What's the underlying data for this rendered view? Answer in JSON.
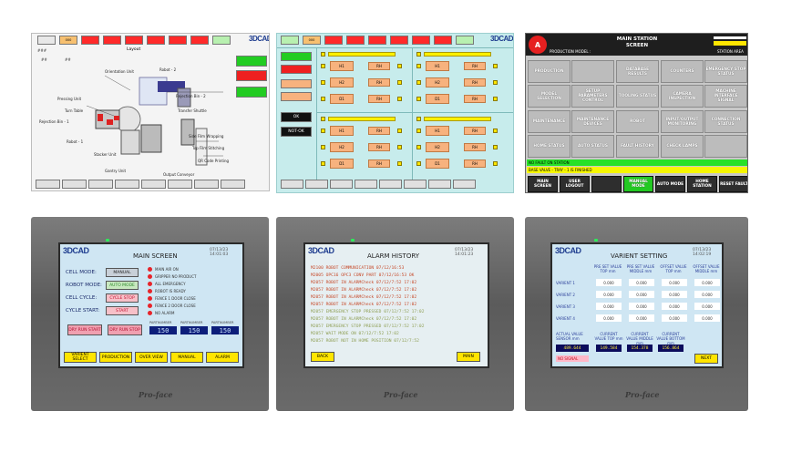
{
  "panel1": {
    "logo": "3DCAD",
    "title": "Layout",
    "top_buttons": [
      {
        "label": "",
        "color": "#e8e8e8"
      },
      {
        "label": "000",
        "color": "#f7c070"
      },
      {
        "label": "",
        "color": "#ff2a2a"
      },
      {
        "label": "",
        "color": "#ff2a2a"
      },
      {
        "label": "",
        "color": "#ff2a2a"
      },
      {
        "label": "",
        "color": "#ff2a2a"
      },
      {
        "label": "",
        "color": "#ff2a2a"
      },
      {
        "label": "",
        "color": "#ff2a2a"
      },
      {
        "label": "",
        "color": "#b8f0b0"
      }
    ],
    "labels": {
      "orientation": "Orientation Unit",
      "robot2": "Robot - 2",
      "pressing": "Pressing Unit",
      "rejection2": "Rejection Bin - 2",
      "turn_table": "Turn Table",
      "transfer": "Transfer Shuttle",
      "rejection1": "Rejection Bin - 1",
      "side_film": "Side Film Wrapping",
      "robot1": "Robot - 1",
      "top_film": "Top Film Stitching",
      "stacker": "Stacker Unit",
      "qr": "QR Code Printing",
      "gantry": "Gantry Unit",
      "output": "Output Conveyor"
    },
    "side_buttons": [
      {
        "label": "",
        "color": "#22cc22"
      },
      {
        "label": "",
        "color": "#ee2020"
      },
      {
        "label": "",
        "color": "#22cc22"
      }
    ],
    "footer": [
      "",
      "",
      "",
      "",
      "",
      "",
      "",
      ""
    ]
  },
  "panel2": {
    "logo": "3DCAD",
    "top_buttons": [
      {
        "label": "",
        "color": "#b8f0b0"
      },
      {
        "label": "000",
        "color": "#f7c070"
      },
      {
        "label": "",
        "color": "#ff2a2a"
      },
      {
        "label": "",
        "color": "#ff2a2a"
      },
      {
        "label": "",
        "color": "#ff2a2a"
      },
      {
        "label": "",
        "color": "#ff2a2a"
      },
      {
        "label": "",
        "color": "#ff2a2a"
      },
      {
        "label": "",
        "color": "#ff2a2a"
      },
      {
        "label": "",
        "color": "#b8f0b0"
      }
    ],
    "side": [
      {
        "label": "",
        "color": "#22cc22"
      },
      {
        "label": "",
        "color": "#ee2020"
      },
      {
        "label": "",
        "color": "#f7b27e"
      },
      {
        "label": "",
        "color": "#f7b27e"
      },
      {
        "label": "OK",
        "color": "#111111"
      },
      {
        "label": "NOT-OK",
        "color": "#111111"
      }
    ],
    "cells": {
      "h1": "H1",
      "h2": "H2",
      "d1": "D1",
      "rh": "RH"
    },
    "footer": [
      "",
      "",
      "",
      "",
      "",
      "",
      "",
      ""
    ]
  },
  "panel3": {
    "title_line1": "MAIN STATION",
    "title_line2": "SCREEN",
    "production_model": "PRODUCTION MODEL :",
    "station_area": "STATION AREA",
    "buttons": [
      [
        "PRODUCTION",
        "",
        "DATABASE RESULTS",
        "COUNTERS",
        "EMERGENCY STOP STATUS"
      ],
      [
        "MODEL SELECTION",
        "SETUP PARAMETERS CONTROL",
        "TOOLING STATUS",
        "CAMERA INSPECTION",
        "MACHINE INTERFACE SIGNAL"
      ],
      [
        "MAINTENANCE",
        "MAINTENANCE DEVICES",
        "ROBOT",
        "INPUT/OUTPUT MONITORING",
        "CONNECTION STATUS"
      ],
      [
        "HOME STATUS",
        "AUTO STATUS",
        "FAULT HISTORY",
        "CHECK LAMPS",
        ""
      ]
    ],
    "status1": "NO FAULT ON STATION",
    "status2": "BASE VALVE - TRAY - 1 IS FINISHED",
    "footer": [
      "MAIN SCREEN",
      "USER LOGOUT",
      "",
      "MANUAL MODE",
      "AUTO MODE",
      "HOME STATION",
      "RESET FAULT"
    ]
  },
  "panel4": {
    "logo": "3DCAD",
    "title": "MAIN SCREEN",
    "datetime": "07/13/23 14:01:03",
    "rows": [
      {
        "label": "CELL MODE:",
        "value": "MANUAL"
      },
      {
        "label": "ROBOT MODE:",
        "value": "AUTO MODE"
      },
      {
        "label": "CELL CYCLE:",
        "value": "CYCLE STOP"
      },
      {
        "label": "CYCLE START:",
        "value": "START"
      }
    ],
    "status_list": [
      "MAIN AIR ON",
      "GRIPPER NO PRODUCT",
      "ALL EMERGENCY",
      "ROBOT IS READY",
      "FENCE 1 DOOR CLOSE",
      "FENCE 2 DOOR CLOSE",
      "NO ALARM"
    ],
    "dry_run_start": "DRY RUN START",
    "dry_run_stop": "DRY RUN STOP",
    "counter_labels": [
      "PARTNUMBER",
      "PARTNUMBER",
      "PARTNUMBER"
    ],
    "counters": [
      "150",
      "150",
      "150"
    ],
    "footer": [
      "VARIENT SELECT",
      "PRODUCTION",
      "OVER VIEW",
      "MANUAL",
      "ALARM"
    ],
    "brand": "Pro-face"
  },
  "panel5": {
    "logo": "3DCAD",
    "title": "ALARM HISTORY",
    "datetime": "07/13/23 14:01:23",
    "lines": [
      "M2100 ROBOT COMMUNICATION 07/12/16:53",
      "M2005 OPC16 OPC3 CONV PART 07/12/16:53 OK",
      "M2057 ROBOT IN ALARMCheck 07/12/7:52 17:02",
      "M2057 ROBOT IN ALARMCheck 07/12/7:52 17:02",
      "M2057 ROBOT IN ALARMCheck 07/12/7:52 17:02",
      "M2057 ROBOT IN ALARMCheck 07/12/7:52 17:02",
      "M2057 EMERGENCY STOP PRESSED 07/12/7:52 17:02",
      "M2057 ROBOT IN ALARMCheck 07/12/7:52 17:02",
      "M2057 EMERGENCY STOP PRESSED 07/12/7:52 17:02",
      "M2057 WAIT MODE ON 07/12/7:52 17:02",
      "M2057 ROBOT NOT IN HOME POSITION 07/12/7:52"
    ],
    "back": "BACK",
    "main": "MAIN",
    "brand": "Pro-face"
  },
  "panel6": {
    "logo": "3DCAD",
    "title": "VARIENT SETTING",
    "datetime": "07/13/23 14:02:19",
    "headers": [
      "PRE SET VALUE TOP mm",
      "PRE SET VALUE MIDDLE mm",
      "OFFSET VALUE TOP mm",
      "OFFSET VALUE MIDDLE mm"
    ],
    "rows": [
      {
        "label": "VARIENT 1",
        "values": [
          "0.000",
          "0.000",
          "0.000",
          "0.000"
        ]
      },
      {
        "label": "VARIENT 2",
        "values": [
          "0.000",
          "0.000",
          "0.000",
          "0.000"
        ]
      },
      {
        "label": "VARIENT 3",
        "values": [
          "0.000",
          "0.000",
          "0.000",
          "0.000"
        ]
      },
      {
        "label": "VARIENT 4",
        "values": [
          "0.000",
          "0.000",
          "0.000",
          "0.000"
        ]
      }
    ],
    "actual_label": "ACTUAL VALUE SENSOR mm",
    "current_labels": [
      "CURRENT VALUE TOP mm",
      "CURRENT VALUE MIDDLE mm",
      "CURRENT VALUE BOTTOM mm"
    ],
    "actual_value": "489.644",
    "current_values": [
      "149.584",
      "154.378",
      "156.864"
    ],
    "no_signal": "NO SIGNAL",
    "next": "NEXT",
    "brand": "Pro-face"
  }
}
